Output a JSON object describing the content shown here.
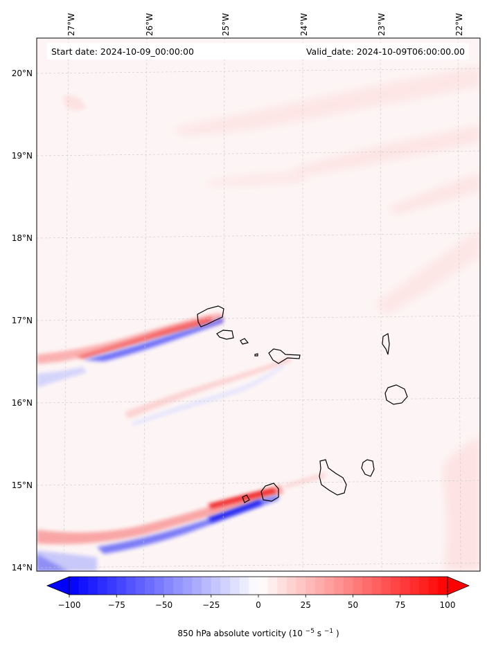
{
  "map": {
    "start_label": "Start date: 2024-10-09_00:00:00",
    "valid_label": "Valid_date: 2024-10-09T06:00:00.00",
    "lon_labels": [
      "27°W",
      "26°W",
      "25°W",
      "24°W",
      "23°W",
      "22°W"
    ],
    "lat_labels": [
      "20°N",
      "19°N",
      "18°N",
      "17°N",
      "16°N",
      "15°N",
      "14°N"
    ],
    "field_name": "850 hPa absolute vorticity",
    "field_units_prefix": "(10",
    "field_units_exp": "−5",
    "field_units_mid": "s",
    "field_units_exp2": "−1",
    "field_units_suffix": ")",
    "projection_extent": {
      "lon_min": -27.4,
      "lon_max": -21.7,
      "lat_min": 13.95,
      "lat_max": 20.4
    }
  },
  "colorbar": {
    "ticks": [
      {
        "value": -100,
        "label": "−100"
      },
      {
        "value": -75,
        "label": "−75"
      },
      {
        "value": -50,
        "label": "−50"
      },
      {
        "value": -25,
        "label": "−25"
      },
      {
        "value": 0,
        "label": "0"
      },
      {
        "value": 25,
        "label": "25"
      },
      {
        "value": 50,
        "label": "50"
      },
      {
        "value": 75,
        "label": "75"
      },
      {
        "value": 100,
        "label": "100"
      }
    ],
    "vmin": -100,
    "vmax": 100,
    "cmap": "bwr",
    "extend": "both",
    "low_color": "#0000ff",
    "mid_color": "#ffffff",
    "high_color": "#ff0000"
  },
  "colors": {
    "background_tint": "#fdf4f4",
    "coastline": "#000000",
    "gridline": "#c8c8c8"
  }
}
